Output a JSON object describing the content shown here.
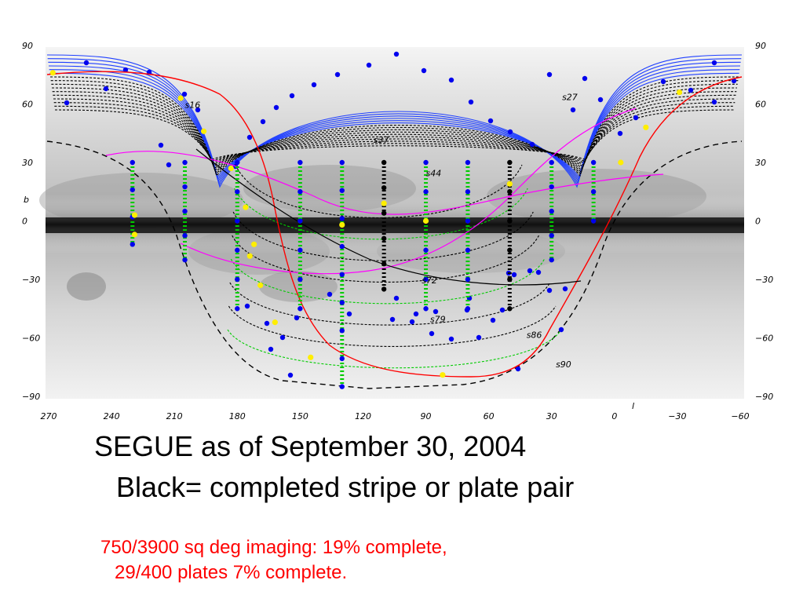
{
  "title": "SEGUE as of September 30, 2004",
  "subtitle": "Black= completed stripe or plate pair",
  "status": {
    "imaging": "750/3900 sq deg imaging: 19% complete,",
    "plates": "29/400 plates 7% complete."
  },
  "colors": {
    "completed": "#000000",
    "planned_imaging": "#2040ff",
    "plates": "#00cc00",
    "plate_center": "#0000ee",
    "special": "#ffee00",
    "ecliptic_line": "#ff0000",
    "magenta_line": "#ff00ff",
    "sky_limit": "#000000"
  },
  "chart_data": {
    "type": "scatter",
    "xlabel": "l",
    "ylabel": "b",
    "xlim": [
      270,
      -60
    ],
    "ylim": [
      -90,
      90
    ],
    "x_ticks": [
      "270",
      "240",
      "210",
      "180",
      "150",
      "120",
      "90",
      "60",
      "30",
      "0",
      "−30",
      "−60"
    ],
    "y_ticks": [
      "90",
      "60",
      "30",
      "0",
      "−30",
      "−60",
      "−90"
    ],
    "stripe_labels": [
      {
        "text": "s16",
        "l": 205,
        "b": 58
      },
      {
        "text": "s27",
        "l": 25,
        "b": 62
      },
      {
        "text": "s37",
        "l": 115,
        "b": 40
      },
      {
        "text": "s44",
        "l": 90,
        "b": 23
      },
      {
        "text": "s72",
        "l": 92,
        "b": -32
      },
      {
        "text": "s79",
        "l": 88,
        "b": -52
      },
      {
        "text": "s86",
        "l": 42,
        "b": -60
      },
      {
        "text": "s90",
        "l": 28,
        "b": -75
      }
    ],
    "vertical_stripes": [
      {
        "l": 230,
        "b_range": [
          -12,
          30
        ],
        "status": "plates"
      },
      {
        "l": 205,
        "b_range": [
          -20,
          30
        ],
        "status": "plates"
      },
      {
        "l": 180,
        "b_range": [
          -45,
          30
        ],
        "status": "plates"
      },
      {
        "l": 150,
        "b_range": [
          -45,
          30
        ],
        "status": "plates"
      },
      {
        "l": 130,
        "b_range": [
          -85,
          30
        ],
        "status": "plates"
      },
      {
        "l": 110,
        "b_range": [
          -35,
          30
        ],
        "status": "completed"
      },
      {
        "l": 90,
        "b_range": [
          -45,
          30
        ],
        "status": "plates"
      },
      {
        "l": 70,
        "b_range": [
          -45,
          30
        ],
        "status": "plates"
      },
      {
        "l": 50,
        "b_range": [
          -45,
          30
        ],
        "status": "completed"
      },
      {
        "l": 30,
        "b_range": [
          -20,
          30
        ],
        "status": "plates"
      },
      {
        "l": 10,
        "b_range": [
          0,
          30
        ],
        "status": "plates"
      }
    ],
    "special_points": [
      {
        "l": 268,
        "b": 76
      },
      {
        "l": 207,
        "b": 63
      },
      {
        "l": 196,
        "b": 46
      },
      {
        "l": 183,
        "b": 27
      },
      {
        "l": 176,
        "b": 7
      },
      {
        "l": 172,
        "b": -12
      },
      {
        "l": 174,
        "b": -18
      },
      {
        "l": 169,
        "b": -33
      },
      {
        "l": 162,
        "b": -52
      },
      {
        "l": 145,
        "b": -70
      },
      {
        "l": 82,
        "b": -79
      },
      {
        "l": -3,
        "b": 30
      },
      {
        "l": -15,
        "b": 48
      },
      {
        "l": -31,
        "b": 66
      },
      {
        "l": 229,
        "b": 3
      },
      {
        "l": 229,
        "b": -7
      },
      {
        "l": 110,
        "b": 9
      },
      {
        "l": 130,
        "b": -2
      },
      {
        "l": 90,
        "b": 0
      },
      {
        "l": 50,
        "b": 19
      }
    ]
  }
}
